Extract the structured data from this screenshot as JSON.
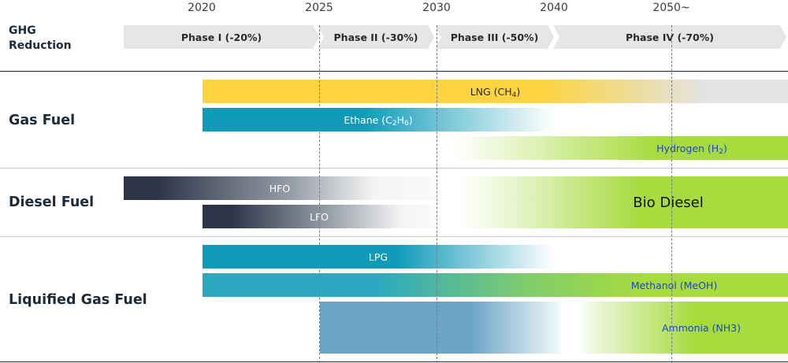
{
  "chart_data": {
    "type": "roadmap",
    "years": [
      "2020",
      "2025",
      "2030",
      "2040",
      "2050~"
    ],
    "ghg_label": "GHG Reduction",
    "phases": [
      {
        "label": "Phase I (-20%)"
      },
      {
        "label": "Phase II (-30%)"
      },
      {
        "label": "Phase III (-50%)"
      },
      {
        "label": "Phase IV (-70%)"
      }
    ],
    "sections": [
      {
        "name": "Gas Fuel",
        "bars": [
          {
            "label": "LNG (CH4)",
            "sub_label": "LNG (CH",
            "sub_digit": "4",
            "sub_tail": ")",
            "start": "2020",
            "text_color": "#1c2b3a"
          },
          {
            "label": "Ethane (C2H6)",
            "start": "2020",
            "end": "2040",
            "text_color": "#ffffff"
          },
          {
            "label": "Hydrogen (H2)",
            "start": "2030",
            "end": "2050~",
            "text_color": "#1a47c8"
          }
        ]
      },
      {
        "name": "Diesel Fuel",
        "bars": [
          {
            "label": "HFO",
            "end": "2030",
            "text_color": "#ffffff"
          },
          {
            "label": "LFO",
            "start": "2020",
            "end": "2030",
            "text_color": "#ffffff"
          },
          {
            "label": "Bio Diesel",
            "start": "2030",
            "end": "2050~",
            "text_color": "#111111"
          }
        ]
      },
      {
        "name": "Liquified Gas Fuel",
        "bars": [
          {
            "label": "LPG",
            "start": "2020",
            "end": "2040",
            "text_color": "#ffffff"
          },
          {
            "label": "Methanol (MeOH)",
            "start": "2020",
            "end": "2050~",
            "text_color": "#1a47c8"
          },
          {
            "label": "Ammonia (NH3)",
            "start": "2025",
            "end": "2050~",
            "text_color": "#1a47c8"
          }
        ]
      }
    ],
    "colors": {
      "lng": "#fdd33f",
      "ethane": "#0e9ab8",
      "hydrogen": "#a7db3e",
      "hfo": "#2b3547",
      "lpg": "#0e9ab8",
      "methanol": "#2da8c0",
      "ammonia": "#6aa4c6",
      "bio_diesel": "#a7db3e",
      "phase_bg": "#e6e6e6",
      "grey": "#e3e3e3",
      "divider": "#1c2b3a"
    }
  }
}
